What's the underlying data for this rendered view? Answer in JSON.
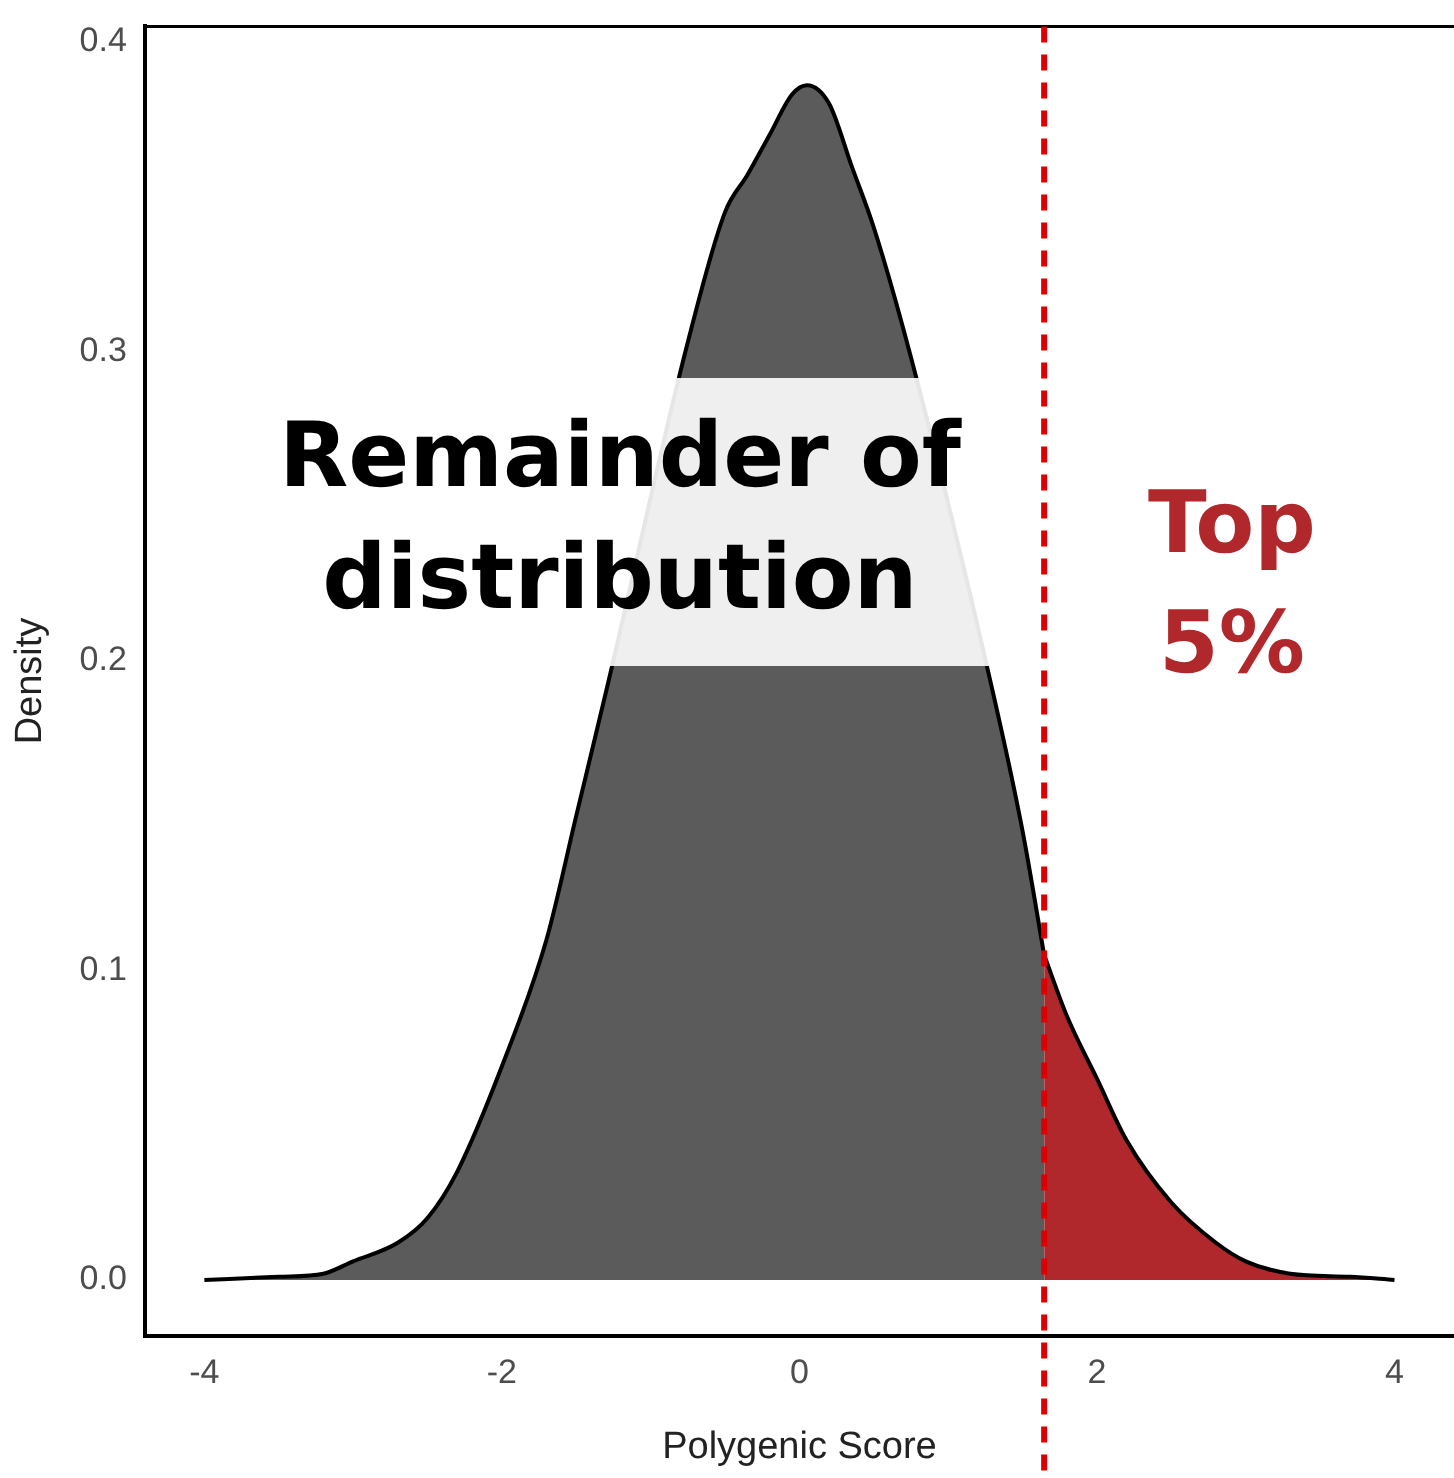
{
  "chart_data": {
    "type": "area",
    "xlabel": "Polygenic Score",
    "ylabel": "Density",
    "xlim": [
      -4.4,
      4.4
    ],
    "xticks": [
      -4,
      -2,
      0,
      2,
      4
    ],
    "ylim": [
      -0.018,
      0.405
    ],
    "yticks": [
      {
        "value": 0,
        "label": "0.0"
      },
      0.1,
      0.2,
      0.3,
      0.4
    ],
    "grid": false,
    "legend": false,
    "marker": "none",
    "series": [
      {
        "color": "#5b5b5b",
        "x": [
          -4,
          -3.5,
          -3.2,
          -3,
          -2.7,
          -2.5,
          -2.3,
          -2,
          -1.7,
          -1.5,
          -1.3,
          -0.75,
          -0.5,
          -0.35,
          -0.2,
          -0.05,
          0.05,
          0.2,
          0.35,
          0.5,
          0.75,
          1.3,
          1.5,
          1.645
        ],
        "values": [
          0,
          0.001,
          0.002,
          0.006,
          0.012,
          0.02,
          0.035,
          0.069,
          0.11,
          0.15,
          0.19,
          0.303,
          0.345,
          0.357,
          0.37,
          0.383,
          0.386,
          0.38,
          0.36,
          0.34,
          0.298,
          0.19,
          0.145,
          0.105
        ]
      },
      {
        "color": "#b0272c",
        "x": [
          1.645,
          1.8,
          2,
          2.2,
          2.5,
          2.8,
          3,
          3.3,
          3.7,
          4
        ],
        "values": [
          0.105,
          0.085,
          0.065,
          0.045,
          0.025,
          0.012,
          0.006,
          0.002,
          0.001,
          0
        ]
      }
    ],
    "ref_lines": [
      {
        "axis": "x",
        "value": 1.645,
        "color": "#dd0000",
        "line_style": "dashed"
      }
    ],
    "annotations": [
      "Remainder of distribution",
      "Top 5%"
    ]
  }
}
